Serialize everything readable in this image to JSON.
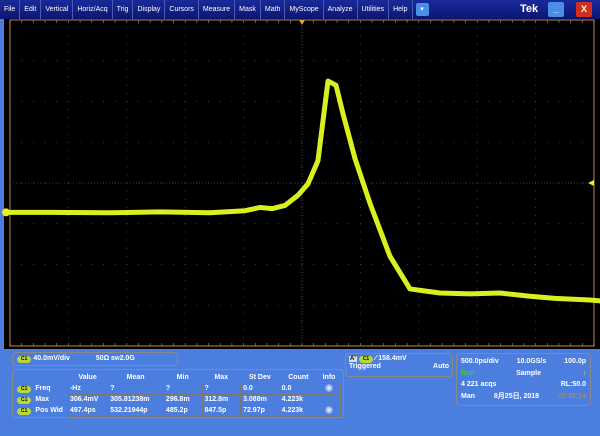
{
  "menu": [
    "File",
    "Edit",
    "Vertical",
    "Horiz/Acq",
    "Trig",
    "Display",
    "Cursors",
    "Measure",
    "Mask",
    "Math",
    "MyScope",
    "Analyze",
    "Utilities",
    "Help"
  ],
  "brand": "Tek",
  "colors": {
    "trace": "#d8f020",
    "menubar": "#0c1670",
    "frame": "#4c7ee0",
    "trigger_marker": "#e8a030"
  },
  "channel": {
    "badge": "C1",
    "scale": "40.0mV/div",
    "impedance": "50Ω",
    "bandwidth": "2.0G",
    "bw_label": "BW"
  },
  "measure": {
    "headers": [
      "Value",
      "Mean",
      "Min",
      "Max",
      "St Dev",
      "Count",
      "Info"
    ],
    "rows": [
      {
        "src": "C1",
        "name": "Freq",
        "cells": [
          "-Hz",
          "?",
          "?",
          "?",
          "0.0",
          "0.0"
        ],
        "info": true
      },
      {
        "src": "C1",
        "name": "Max",
        "cells": [
          "306.4mV",
          "305.81238m",
          "296.8m",
          "312.8m",
          "3.088m",
          "4.223k"
        ],
        "info": false
      },
      {
        "src": "C1",
        "name": "Pos Wid",
        "cells": [
          "497.4ps",
          "532.21944p",
          "485.2p",
          "847.5p",
          "72.97p",
          "4.223k"
        ],
        "info": true
      }
    ]
  },
  "trigger": {
    "label": "A'",
    "src": "C1",
    "level": "158.4mV",
    "state": "Triggered",
    "mode": "Auto"
  },
  "acq": {
    "timebase": "500.0ps/div",
    "rate": "10.0GS/s",
    "res": "100.0p",
    "run": "Run",
    "sample": "Sample",
    "acqs": "4 221 acqs",
    "rl": "RL:50.0",
    "man": "Man",
    "date": "8月25日, 2018",
    "time": "23:31:14"
  },
  "waveform": [
    [
      0,
      0.72
    ],
    [
      40,
      0.72
    ],
    [
      100,
      0.73
    ],
    [
      150,
      0.71
    ],
    [
      200,
      0.73
    ],
    [
      235,
      0.68
    ],
    [
      250,
      0.6
    ],
    [
      262,
      0.63
    ],
    [
      275,
      0.55
    ],
    [
      288,
      0.3
    ],
    [
      298,
      0.02
    ],
    [
      308,
      -0.55
    ],
    [
      318,
      -2.5
    ],
    [
      326,
      -2.4
    ],
    [
      333,
      -1.7
    ],
    [
      345,
      -0.6
    ],
    [
      360,
      0.5
    ],
    [
      380,
      1.8
    ],
    [
      400,
      2.6
    ],
    [
      415,
      2.65
    ],
    [
      430,
      2.7
    ],
    [
      460,
      2.72
    ],
    [
      490,
      2.7
    ],
    [
      520,
      2.78
    ],
    [
      545,
      2.83
    ],
    [
      580,
      2.87
    ],
    [
      594,
      2.9
    ]
  ]
}
